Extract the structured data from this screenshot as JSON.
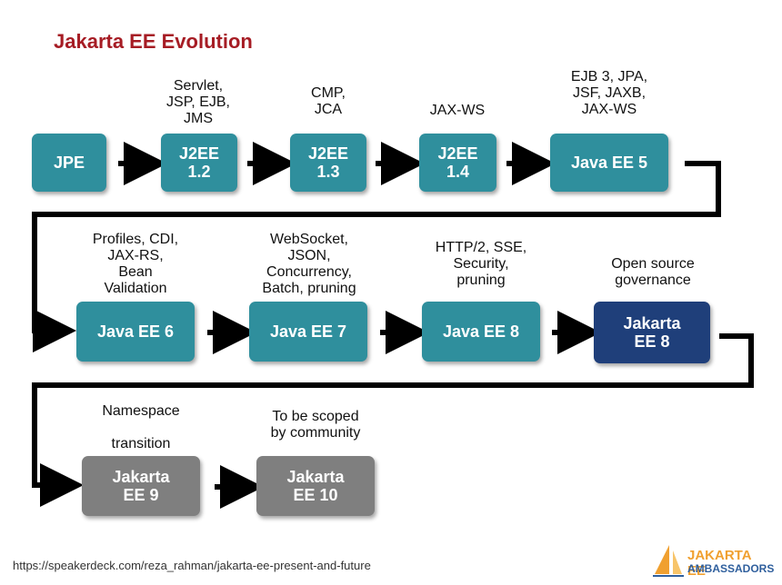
{
  "title": "Jakarta EE Evolution",
  "boxes": [
    {
      "id": "jpe",
      "text": "JPE"
    },
    {
      "id": "j2ee12",
      "text": "J2EE\n1.2"
    },
    {
      "id": "j2ee13",
      "text": "J2EE\n1.3"
    },
    {
      "id": "j2ee14",
      "text": "J2EE\n1.4"
    },
    {
      "id": "javaee5",
      "text": "Java EE 5"
    },
    {
      "id": "javaee6",
      "text": "Java EE 6"
    },
    {
      "id": "javaee7",
      "text": "Java EE 7"
    },
    {
      "id": "javaee8",
      "text": "Java EE 8"
    },
    {
      "id": "jakartaee8",
      "text": "Jakarta\nEE 8"
    },
    {
      "id": "jakartaee9",
      "text": "Jakarta\nEE 9"
    },
    {
      "id": "jakartaee10",
      "text": "Jakarta\nEE 10"
    }
  ],
  "labels": {
    "j2ee12": "Servlet,\nJSP, EJB,\nJMS",
    "j2ee13": "CMP,\nJCA",
    "j2ee14": "JAX-WS",
    "javaee5": "EJB 3, JPA,\nJSF, JAXB,\nJAX-WS",
    "javaee6": "Profiles, CDI,\nJAX-RS,\nBean\nValidation",
    "javaee7": "WebSocket,\nJSON,\nConcurrency,\nBatch, pruning",
    "javaee8": "HTTP/2, SSE,\nSecurity,\npruning",
    "jakartaee8": "Open source\ngovernance",
    "jakartaee9": "Namespace\n\ntransition",
    "jakartaee10": "To be scoped\nby community"
  },
  "footer": {
    "url": "https://speakerdeck.com/reza_rahman/jakarta-ee-present-and-future",
    "logo_line1": "JAKARTA EE",
    "logo_line2": "AMBASSADORS"
  },
  "colors": {
    "title": "#a61c24",
    "teal": "#2f8f9d",
    "navy": "#1f3f7a",
    "gray": "#7f7f7f",
    "logo_orange": "#f0a030",
    "logo_blue": "#2f5f9d"
  }
}
